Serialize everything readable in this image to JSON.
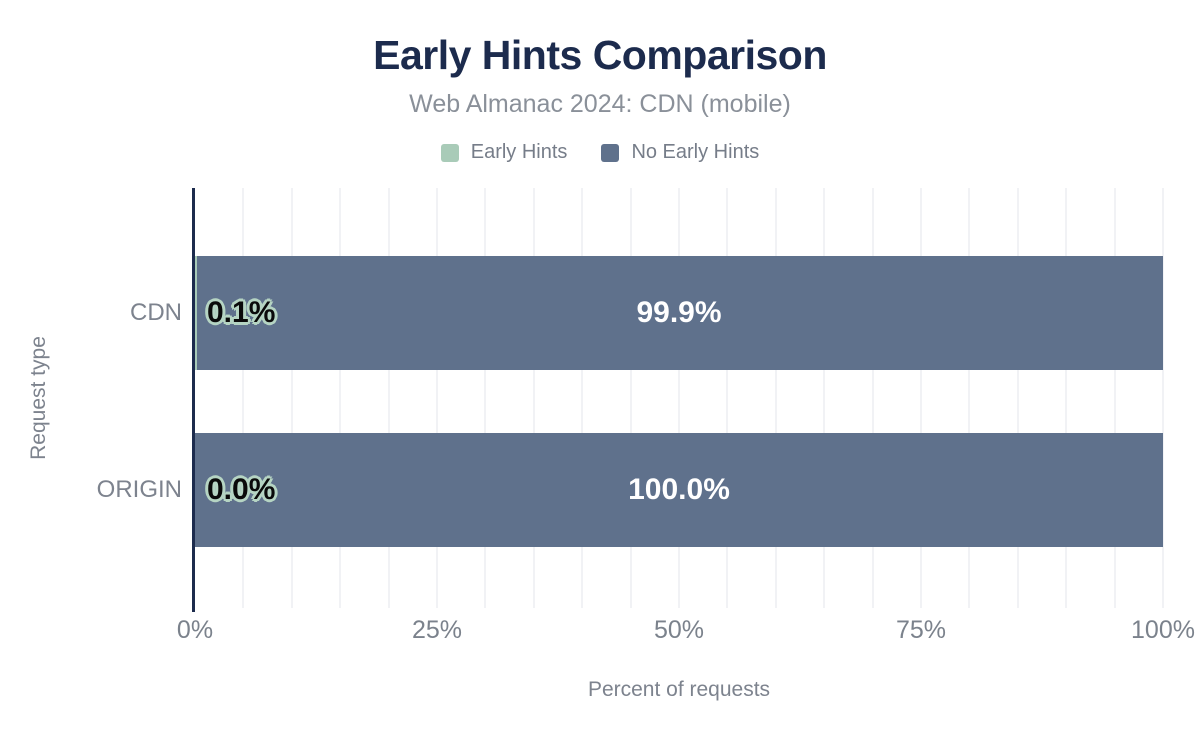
{
  "header": {
    "title": "Early Hints Comparison",
    "subtitle": "Web Almanac 2024: CDN (mobile)"
  },
  "legend": {
    "items": [
      {
        "label": "Early Hints",
        "color": "#a9cbb8"
      },
      {
        "label": "No Early Hints",
        "color": "#5f718c"
      }
    ]
  },
  "chart_data": {
    "type": "bar",
    "orientation": "horizontal",
    "stacked": true,
    "title": "Early Hints Comparison",
    "subtitle": "Web Almanac 2024: CDN (mobile)",
    "xlabel": "Percent of requests",
    "ylabel": "Request type",
    "xlim": [
      0,
      100
    ],
    "xticks": [
      {
        "value": 0,
        "label": "0%"
      },
      {
        "value": 25,
        "label": "25%"
      },
      {
        "value": 50,
        "label": "50%"
      },
      {
        "value": 75,
        "label": "75%"
      },
      {
        "value": 100,
        "label": "100%"
      }
    ],
    "grid": {
      "vertical_step": 5,
      "color": "#f1f2f5"
    },
    "legend_position": "top",
    "categories": [
      "CDN",
      "ORIGIN"
    ],
    "series": [
      {
        "name": "Early Hints",
        "color": "#a9cbb8",
        "values": [
          0.1,
          0.0
        ],
        "data_labels": [
          "0.1%",
          "0.0%"
        ]
      },
      {
        "name": "No Early Hints",
        "color": "#5f718c",
        "values": [
          99.9,
          100.0
        ],
        "data_labels": [
          "99.9%",
          "100.0%"
        ]
      }
    ]
  },
  "colors": {
    "title": "#1c2b4d",
    "subtitle": "#8a9099",
    "axis_line": "#1c2b4d",
    "tick_label": "#7b828c",
    "axis_title": "#7d838e",
    "gridline": "#f1f2f5",
    "bar_label_light": "#ffffff",
    "bar_label_dark": "#0a0a0a",
    "bar_label_outline": "#b5d4c3"
  }
}
